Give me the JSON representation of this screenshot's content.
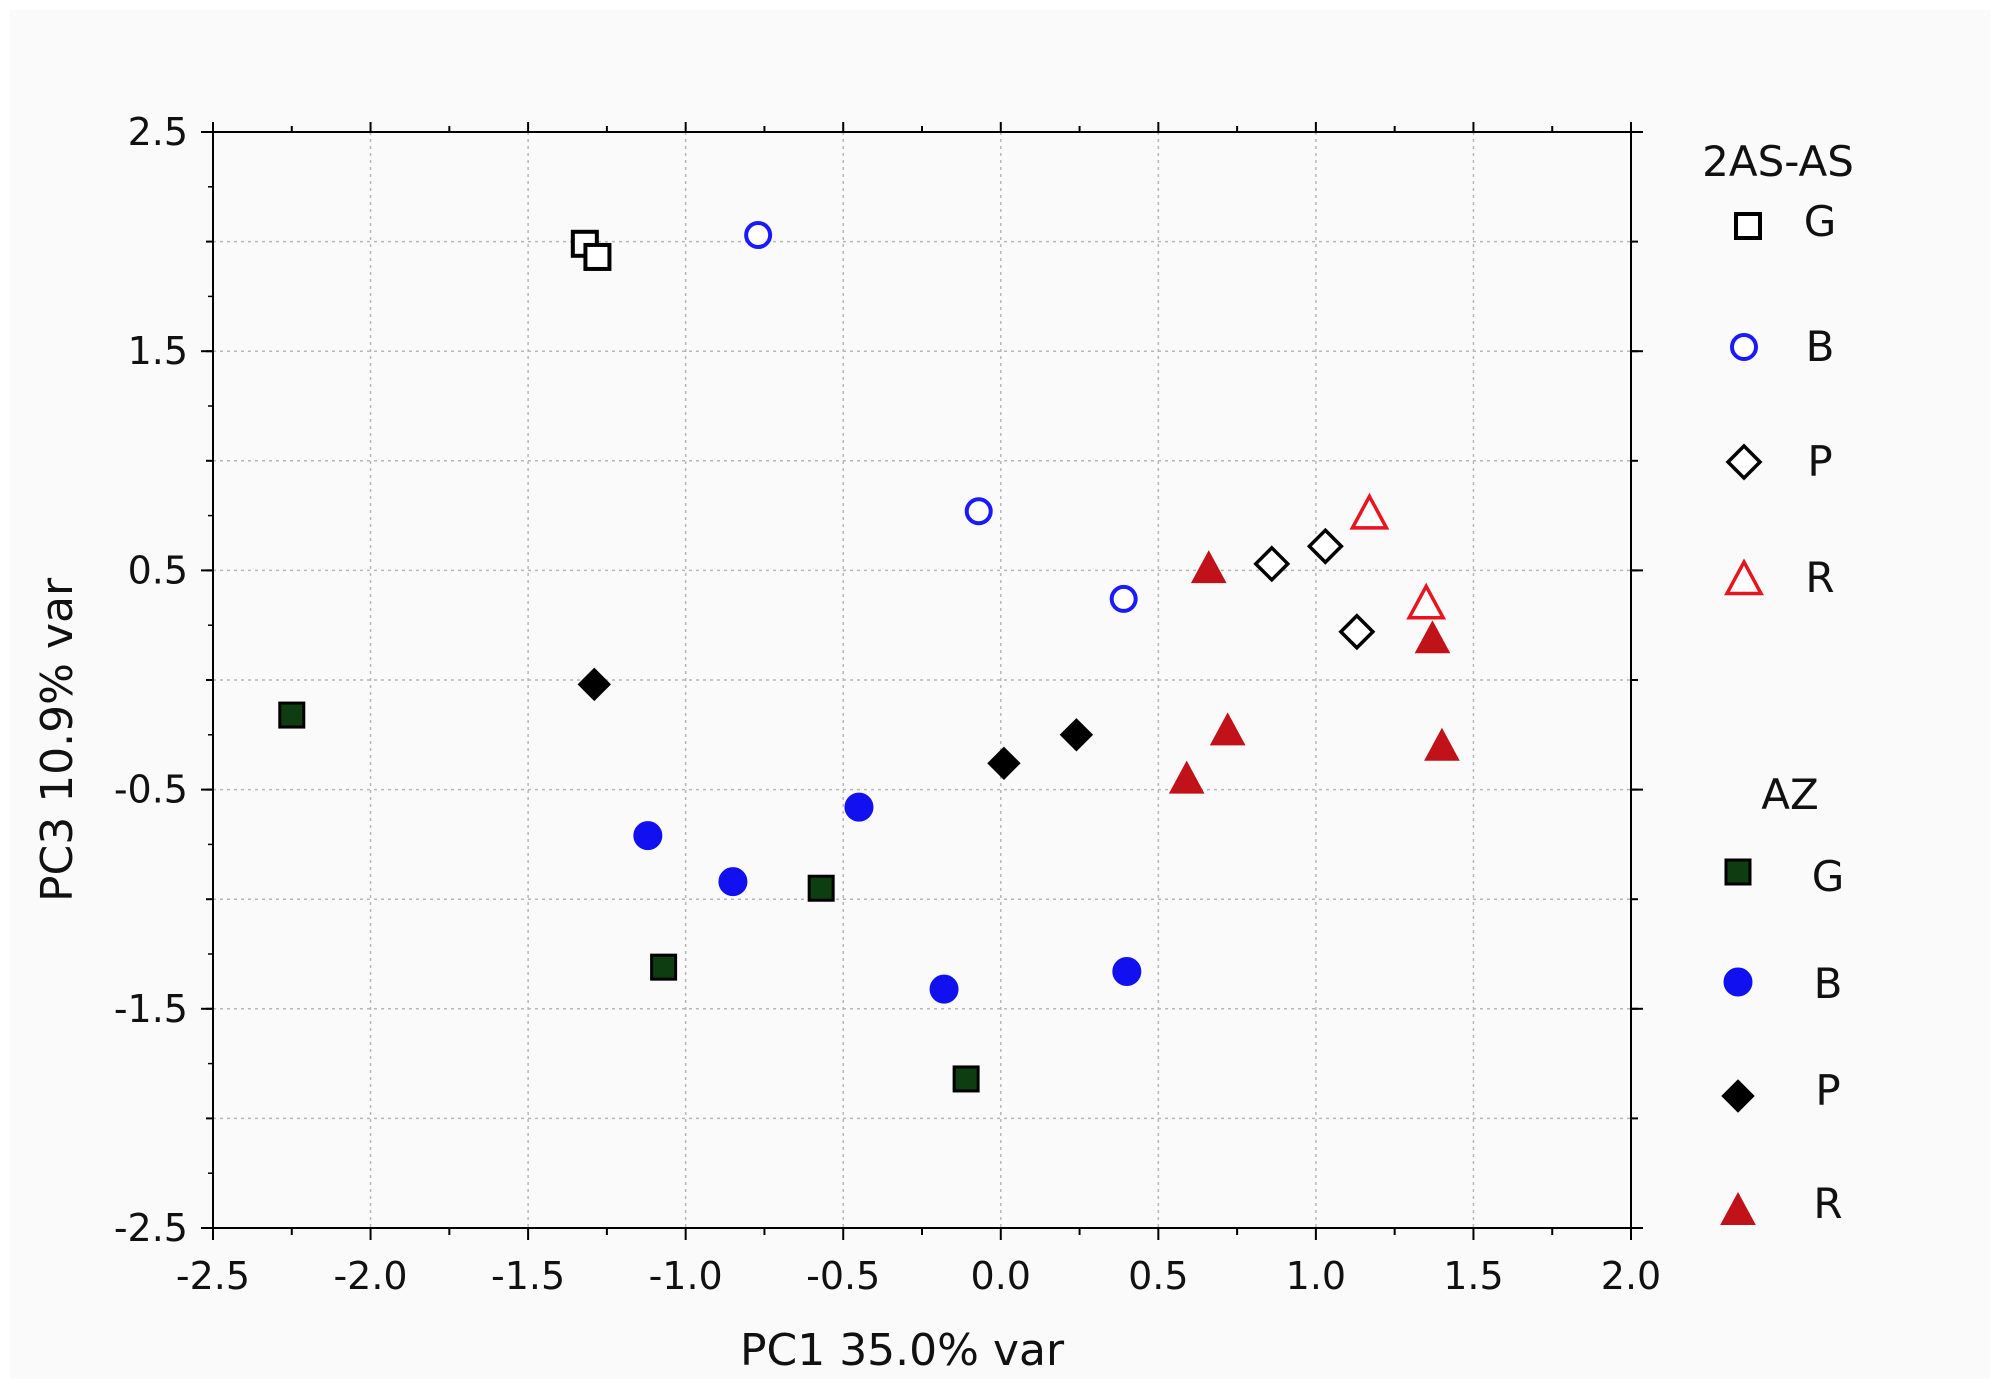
{
  "chart_data": {
    "type": "scatter",
    "title": "",
    "xlabel": "PC1 35.0% var",
    "ylabel": "PC3 10.9% var",
    "xlim": [
      -2.5,
      2.0
    ],
    "ylim": [
      -2.5,
      2.5
    ],
    "x_ticks": [
      "-2.5",
      "-2.0",
      "-1.5",
      "-1.0",
      "-0.5",
      "0.0",
      "0.5",
      "1.0",
      "1.5",
      "2.0"
    ],
    "y_ticks": [
      "2.5",
      "1.5",
      "0.5",
      "-0.5",
      "-1.5",
      "-2.5"
    ],
    "grid": true,
    "legend_position": "right",
    "legend_groups": [
      {
        "title": "2AS-AS",
        "entries": [
          "G",
          "B",
          "P",
          "R"
        ]
      },
      {
        "title": "AZ",
        "entries": [
          "G",
          "B",
          "P",
          "R"
        ]
      }
    ],
    "series": [
      {
        "name": "G",
        "group": "2AS-AS",
        "marker": "square",
        "filled": false,
        "color": "#000000",
        "points": [
          [
            -1.32,
            1.99
          ],
          [
            -1.28,
            1.93
          ]
        ]
      },
      {
        "name": "B",
        "group": "2AS-AS",
        "marker": "circle",
        "filled": false,
        "color": "#1a1aff",
        "points": [
          [
            -0.77,
            2.03
          ],
          [
            -0.07,
            0.77
          ],
          [
            0.39,
            0.37
          ]
        ]
      },
      {
        "name": "P",
        "group": "2AS-AS",
        "marker": "diamond",
        "filled": false,
        "color": "#000000",
        "points": [
          [
            0.86,
            0.53
          ],
          [
            1.03,
            0.61
          ],
          [
            1.13,
            0.22
          ]
        ]
      },
      {
        "name": "R",
        "group": "2AS-AS",
        "marker": "triangle",
        "filled": false,
        "color": "#e8141e",
        "points": [
          [
            1.17,
            0.76
          ],
          [
            1.35,
            0.35
          ]
        ]
      },
      {
        "name": "G",
        "group": "AZ",
        "marker": "square",
        "filled": true,
        "color": "#0f3d12",
        "points": [
          [
            -2.25,
            -0.16
          ],
          [
            -0.57,
            -0.95
          ],
          [
            -1.07,
            -1.31
          ],
          [
            -0.11,
            -1.82
          ]
        ]
      },
      {
        "name": "B",
        "group": "AZ",
        "marker": "circle",
        "filled": true,
        "color": "#1010f0",
        "points": [
          [
            -1.12,
            -0.71
          ],
          [
            -0.85,
            -0.92
          ],
          [
            -0.45,
            -0.58
          ],
          [
            -0.18,
            -1.41
          ],
          [
            0.4,
            -1.33
          ]
        ]
      },
      {
        "name": "P",
        "group": "AZ",
        "marker": "diamond",
        "filled": true,
        "color": "#000000",
        "points": [
          [
            -1.29,
            -0.02
          ],
          [
            0.01,
            -0.38
          ],
          [
            0.24,
            -0.25
          ]
        ]
      },
      {
        "name": "R",
        "group": "AZ",
        "marker": "triangle",
        "filled": true,
        "color": "#c1121a",
        "points": [
          [
            0.66,
            0.51
          ],
          [
            0.72,
            -0.23
          ],
          [
            0.59,
            -0.45
          ],
          [
            1.37,
            0.19
          ],
          [
            1.4,
            -0.3
          ]
        ]
      }
    ]
  }
}
